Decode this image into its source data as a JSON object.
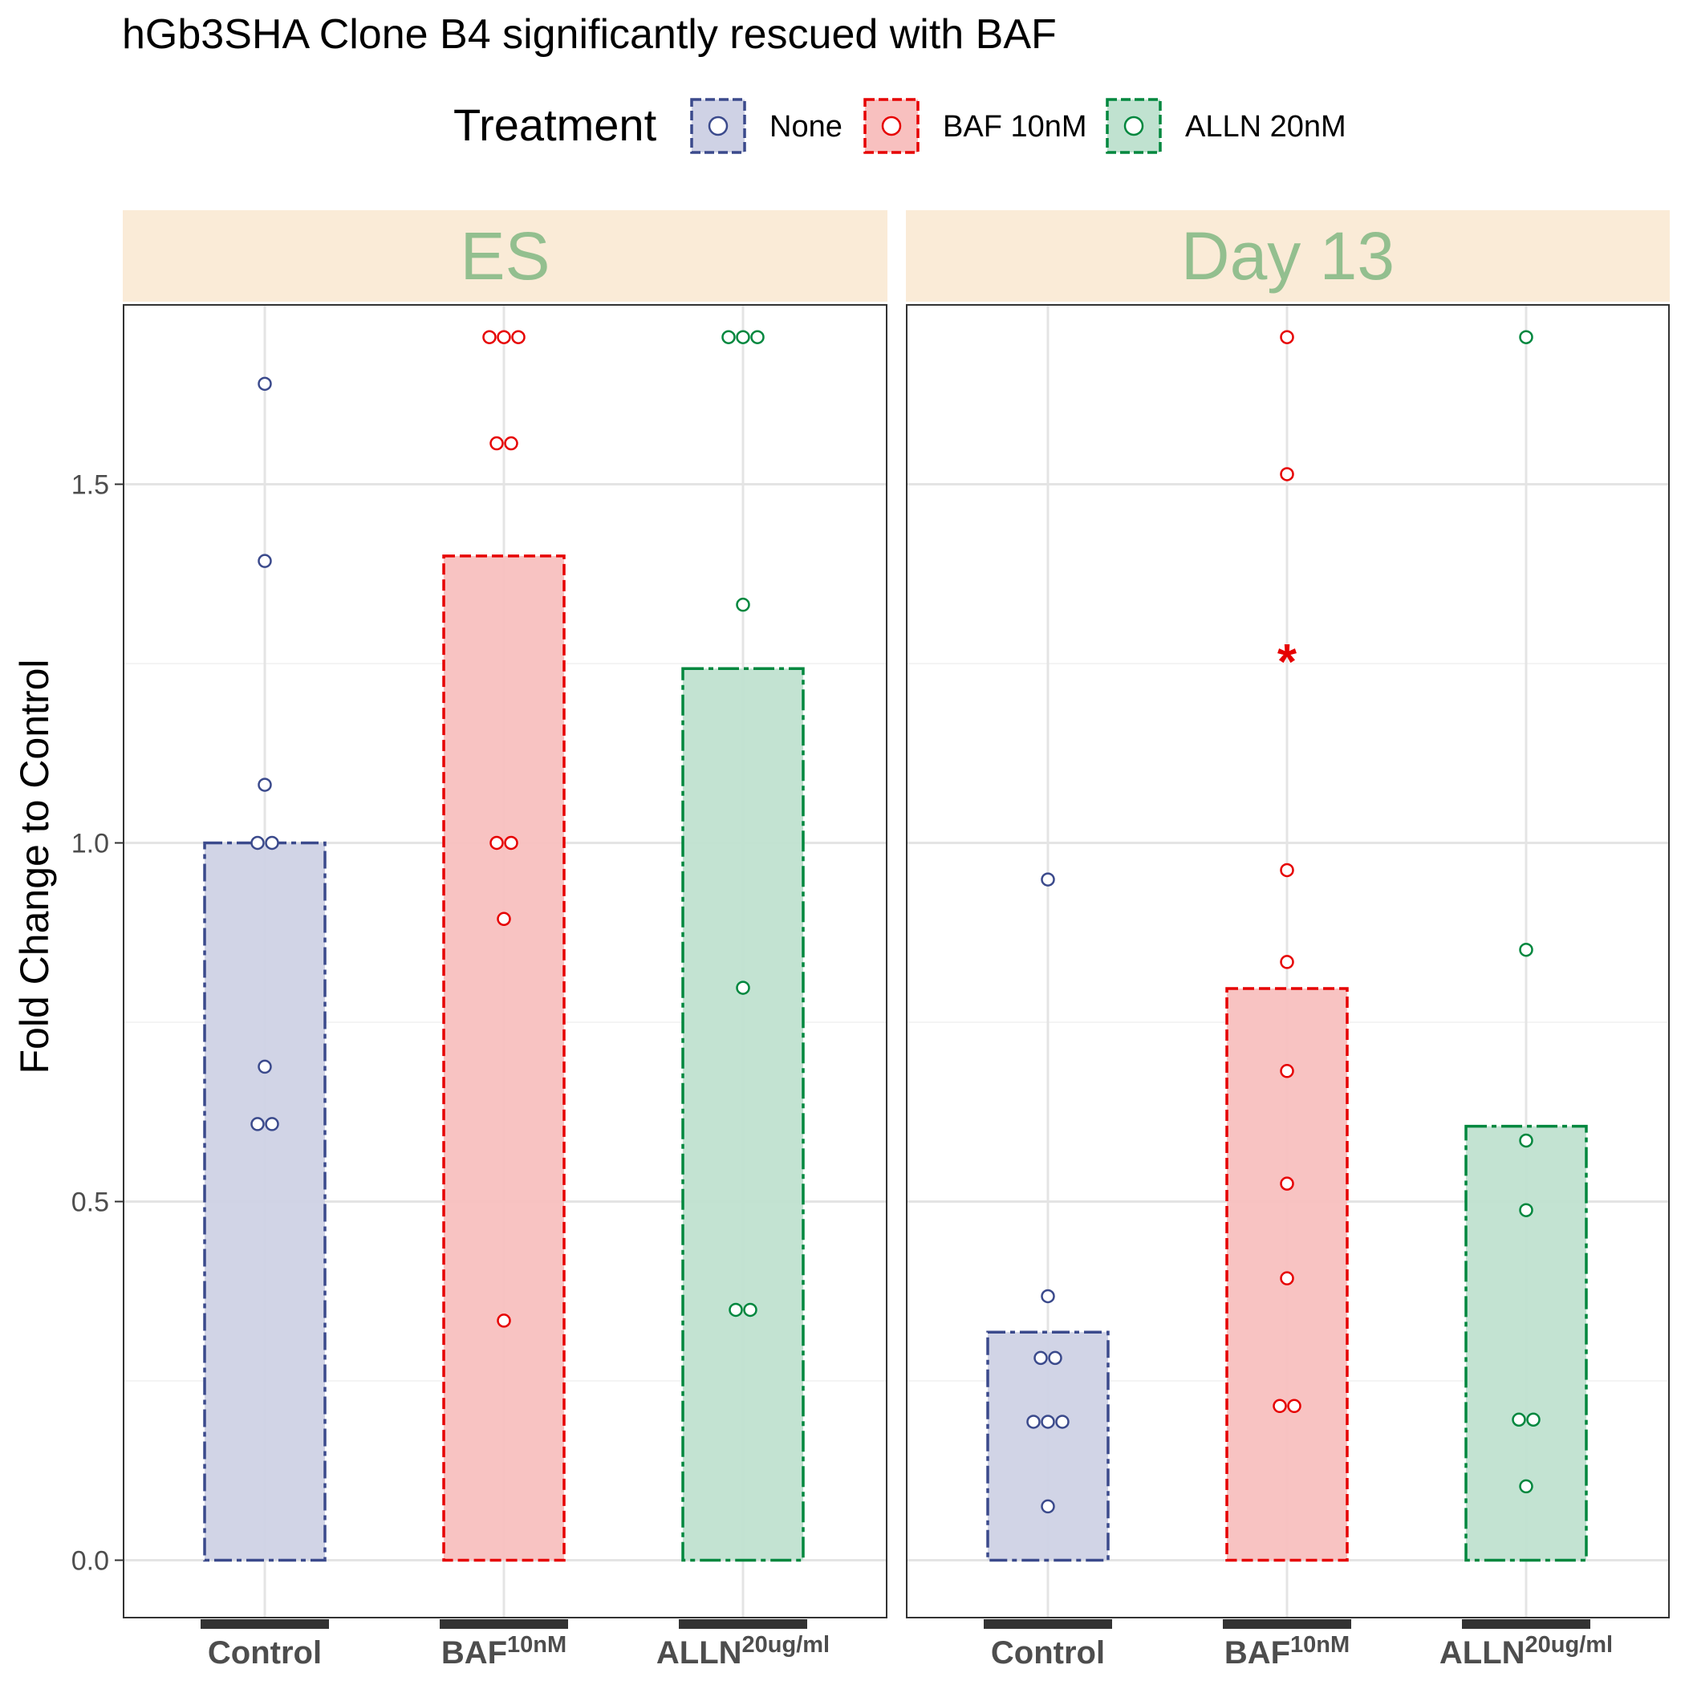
{
  "chart_data": {
    "type": "bar",
    "title": "hGb3SHA Clone B4 significantly rescued with BAF",
    "ylabel": "Fold Change to Control",
    "ylim": [
      -0.08,
      1.75
    ],
    "yticks": [
      "0.0",
      "0.5",
      "1.0",
      "1.5"
    ],
    "ytick_values": [
      0,
      0.5,
      1.0,
      1.5
    ],
    "grid": true,
    "legend": {
      "title": "Treatment",
      "position": "top",
      "items": [
        {
          "label": "None",
          "color": "#3b4a8c",
          "fill": "#cfd2e5"
        },
        {
          "label": "BAF 10nM",
          "color": "#e60000",
          "fill": "#f8c0bf"
        },
        {
          "label": "ALLN 20nM",
          "color": "#00873e",
          "fill": "#c0e2d0"
        }
      ]
    },
    "categories": [
      {
        "main": "Control",
        "sup": ""
      },
      {
        "main": "BAF",
        "sup": "10nM"
      },
      {
        "main": "ALLN",
        "sup": "20ug/ml"
      }
    ],
    "panels": [
      {
        "label": "ES",
        "bars": [
          1.0,
          1.4,
          1.243
        ],
        "points": [
          [
            1.64,
            1.393,
            1.081,
            1.0,
            1.0,
            0.688,
            0.608,
            0.608
          ],
          [
            1.705,
            1.705,
            1.705,
            1.557,
            1.557,
            1.0,
            1.0,
            0.894,
            0.334
          ],
          [
            1.705,
            1.705,
            1.705,
            1.332,
            0.798,
            0.349,
            0.349
          ]
        ],
        "annotations": []
      },
      {
        "label": "Day 13",
        "bars": [
          0.318,
          0.797,
          0.605
        ],
        "points": [
          [
            0.949,
            0.368,
            0.282,
            0.282,
            0.193,
            0.193,
            0.193,
            0.075
          ],
          [
            1.705,
            1.514,
            0.962,
            0.834,
            0.682,
            0.525,
            0.393,
            0.215,
            0.215
          ],
          [
            1.705,
            0.851,
            0.585,
            0.488,
            0.196,
            0.196,
            0.103
          ]
        ],
        "annotations": [
          {
            "text": "*",
            "category_index": 1,
            "y": 1.26
          }
        ]
      }
    ]
  }
}
